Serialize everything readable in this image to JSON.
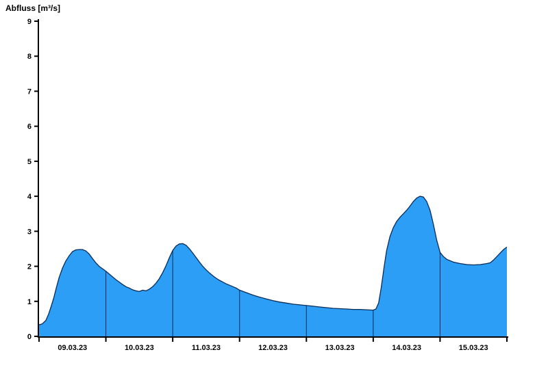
{
  "chart_data": {
    "type": "area",
    "title": "Abfluss [m³/s]",
    "xlabel": "",
    "ylabel": "Abfluss [m³/s]",
    "ylim": [
      0,
      9
    ],
    "y_ticks": [
      0,
      1,
      2,
      3,
      4,
      5,
      6,
      7,
      8,
      9
    ],
    "x_categories": [
      "09.03.23",
      "10.03.23",
      "11.03.23",
      "12.03.23",
      "13.03.23",
      "14.03.23",
      "15.03.23"
    ],
    "x_range_days": 7,
    "grid": "vertical-day-separators-inside-area",
    "legend_position": "none",
    "colors": {
      "area_fill": "#2D9EF5",
      "curve_line": "#0A2B56",
      "day_separator": "#0A2B56",
      "axis": "#000000"
    },
    "series": [
      {
        "name": "Abfluss",
        "unit": "m³/s",
        "points": [
          [
            0.0,
            0.33
          ],
          [
            0.05,
            0.36
          ],
          [
            0.1,
            0.45
          ],
          [
            0.14,
            0.62
          ],
          [
            0.18,
            0.85
          ],
          [
            0.22,
            1.1
          ],
          [
            0.26,
            1.4
          ],
          [
            0.3,
            1.68
          ],
          [
            0.35,
            1.95
          ],
          [
            0.4,
            2.15
          ],
          [
            0.45,
            2.3
          ],
          [
            0.5,
            2.42
          ],
          [
            0.55,
            2.47
          ],
          [
            0.6,
            2.48
          ],
          [
            0.65,
            2.48
          ],
          [
            0.7,
            2.44
          ],
          [
            0.75,
            2.35
          ],
          [
            0.8,
            2.22
          ],
          [
            0.85,
            2.1
          ],
          [
            0.9,
            2.0
          ],
          [
            0.95,
            1.93
          ],
          [
            1.0,
            1.86
          ],
          [
            1.05,
            1.78
          ],
          [
            1.1,
            1.7
          ],
          [
            1.15,
            1.62
          ],
          [
            1.2,
            1.55
          ],
          [
            1.25,
            1.48
          ],
          [
            1.3,
            1.42
          ],
          [
            1.35,
            1.38
          ],
          [
            1.4,
            1.33
          ],
          [
            1.45,
            1.3
          ],
          [
            1.5,
            1.28
          ],
          [
            1.55,
            1.32
          ],
          [
            1.6,
            1.3
          ],
          [
            1.65,
            1.35
          ],
          [
            1.7,
            1.42
          ],
          [
            1.75,
            1.52
          ],
          [
            1.8,
            1.65
          ],
          [
            1.85,
            1.82
          ],
          [
            1.9,
            2.02
          ],
          [
            1.95,
            2.25
          ],
          [
            2.0,
            2.45
          ],
          [
            2.05,
            2.58
          ],
          [
            2.1,
            2.64
          ],
          [
            2.15,
            2.65
          ],
          [
            2.2,
            2.6
          ],
          [
            2.25,
            2.5
          ],
          [
            2.3,
            2.38
          ],
          [
            2.35,
            2.25
          ],
          [
            2.4,
            2.12
          ],
          [
            2.45,
            2.0
          ],
          [
            2.5,
            1.9
          ],
          [
            2.55,
            1.81
          ],
          [
            2.6,
            1.73
          ],
          [
            2.65,
            1.66
          ],
          [
            2.7,
            1.6
          ],
          [
            2.75,
            1.55
          ],
          [
            2.8,
            1.5
          ],
          [
            2.85,
            1.46
          ],
          [
            2.9,
            1.42
          ],
          [
            2.95,
            1.38
          ],
          [
            3.0,
            1.32
          ],
          [
            3.1,
            1.25
          ],
          [
            3.2,
            1.18
          ],
          [
            3.3,
            1.12
          ],
          [
            3.4,
            1.07
          ],
          [
            3.5,
            1.02
          ],
          [
            3.6,
            0.98
          ],
          [
            3.7,
            0.95
          ],
          [
            3.8,
            0.92
          ],
          [
            3.9,
            0.9
          ],
          [
            4.0,
            0.88
          ],
          [
            4.1,
            0.86
          ],
          [
            4.2,
            0.84
          ],
          [
            4.3,
            0.82
          ],
          [
            4.4,
            0.8
          ],
          [
            4.5,
            0.79
          ],
          [
            4.6,
            0.78
          ],
          [
            4.7,
            0.77
          ],
          [
            4.8,
            0.77
          ],
          [
            4.9,
            0.76
          ],
          [
            5.0,
            0.75
          ],
          [
            5.04,
            0.78
          ],
          [
            5.08,
            0.95
          ],
          [
            5.12,
            1.4
          ],
          [
            5.16,
            1.95
          ],
          [
            5.2,
            2.45
          ],
          [
            5.25,
            2.85
          ],
          [
            5.3,
            3.1
          ],
          [
            5.35,
            3.28
          ],
          [
            5.4,
            3.4
          ],
          [
            5.45,
            3.5
          ],
          [
            5.5,
            3.6
          ],
          [
            5.55,
            3.72
          ],
          [
            5.6,
            3.85
          ],
          [
            5.65,
            3.95
          ],
          [
            5.7,
            4.0
          ],
          [
            5.75,
            3.98
          ],
          [
            5.8,
            3.85
          ],
          [
            5.85,
            3.6
          ],
          [
            5.9,
            3.2
          ],
          [
            5.95,
            2.75
          ],
          [
            6.0,
            2.4
          ],
          [
            6.05,
            2.28
          ],
          [
            6.1,
            2.2
          ],
          [
            6.2,
            2.12
          ],
          [
            6.3,
            2.08
          ],
          [
            6.4,
            2.05
          ],
          [
            6.5,
            2.04
          ],
          [
            6.6,
            2.05
          ],
          [
            6.7,
            2.08
          ],
          [
            6.75,
            2.1
          ],
          [
            6.8,
            2.18
          ],
          [
            6.85,
            2.28
          ],
          [
            6.9,
            2.38
          ],
          [
            6.95,
            2.48
          ],
          [
            7.0,
            2.55
          ]
        ]
      }
    ]
  }
}
